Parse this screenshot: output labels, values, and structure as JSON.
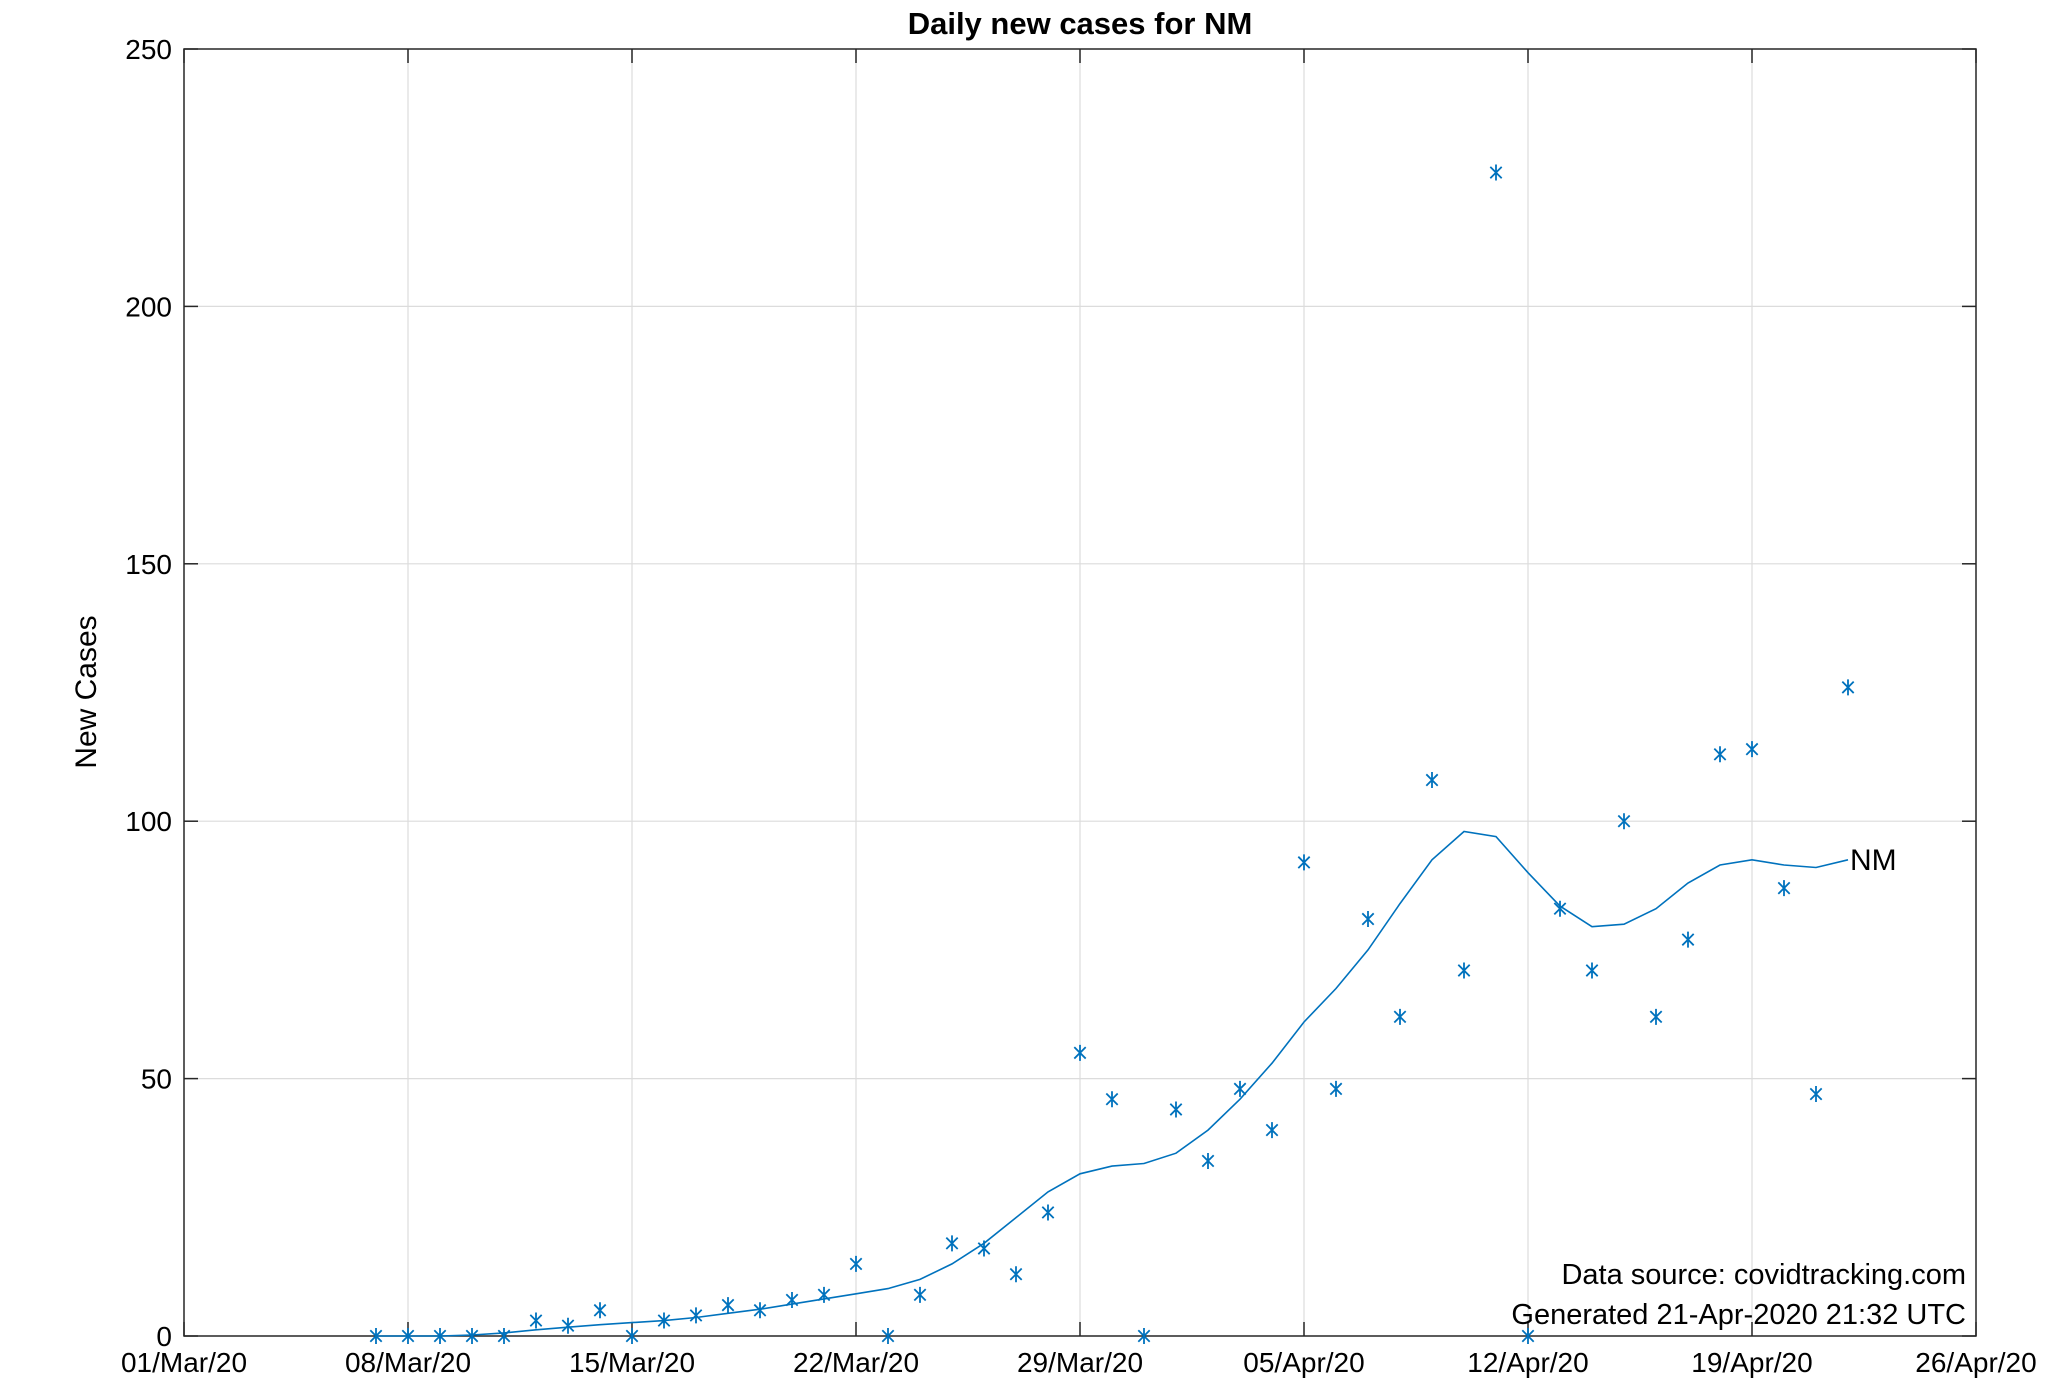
{
  "chart_data": {
    "type": "line",
    "title": "Daily new cases for NM",
    "xlabel": "",
    "ylabel": "New Cases",
    "x_ticks": [
      "01/Mar/20",
      "08/Mar/20",
      "15/Mar/20",
      "22/Mar/20",
      "29/Mar/20",
      "05/Apr/20",
      "12/Apr/20",
      "19/Apr/20",
      "26/Apr/20"
    ],
    "xlim": [
      "2020-03-01",
      "2020-04-26"
    ],
    "ylim": [
      0,
      250
    ],
    "y_ticks": [
      0,
      50,
      100,
      150,
      200,
      250
    ],
    "grid": true,
    "annotations": [
      "Data source: covidtracking.com",
      "Generated 21-Apr-2020 21:32 UTC"
    ],
    "series": [
      {
        "name": "NM",
        "style": "markers",
        "marker": "asterisk",
        "color": "#0072BD",
        "points": [
          [
            "2020-03-07",
            0
          ],
          [
            "2020-03-08",
            0
          ],
          [
            "2020-03-09",
            0
          ],
          [
            "2020-03-10",
            0
          ],
          [
            "2020-03-11",
            0
          ],
          [
            "2020-03-12",
            3
          ],
          [
            "2020-03-13",
            2
          ],
          [
            "2020-03-14",
            5
          ],
          [
            "2020-03-15",
            0
          ],
          [
            "2020-03-16",
            3
          ],
          [
            "2020-03-17",
            4
          ],
          [
            "2020-03-18",
            6
          ],
          [
            "2020-03-19",
            5
          ],
          [
            "2020-03-20",
            7
          ],
          [
            "2020-03-21",
            8
          ],
          [
            "2020-03-22",
            14
          ],
          [
            "2020-03-23",
            0
          ],
          [
            "2020-03-24",
            8
          ],
          [
            "2020-03-25",
            18
          ],
          [
            "2020-03-26",
            17
          ],
          [
            "2020-03-27",
            12
          ],
          [
            "2020-03-28",
            24
          ],
          [
            "2020-03-29",
            55
          ],
          [
            "2020-03-30",
            46
          ],
          [
            "2020-03-31",
            0
          ],
          [
            "2020-04-01",
            44
          ],
          [
            "2020-04-02",
            34
          ],
          [
            "2020-04-03",
            48
          ],
          [
            "2020-04-04",
            40
          ],
          [
            "2020-04-05",
            92
          ],
          [
            "2020-04-06",
            48
          ],
          [
            "2020-04-07",
            81
          ],
          [
            "2020-04-08",
            62
          ],
          [
            "2020-04-09",
            108
          ],
          [
            "2020-04-10",
            71
          ],
          [
            "2020-04-11",
            226
          ],
          [
            "2020-04-12",
            0
          ],
          [
            "2020-04-13",
            83
          ],
          [
            "2020-04-14",
            71
          ],
          [
            "2020-04-15",
            100
          ],
          [
            "2020-04-16",
            62
          ],
          [
            "2020-04-17",
            77
          ],
          [
            "2020-04-18",
            113
          ],
          [
            "2020-04-19",
            114
          ],
          [
            "2020-04-20",
            87
          ],
          [
            "2020-04-21",
            47
          ],
          [
            "2020-04-22",
            126
          ]
        ]
      },
      {
        "name": "NM",
        "style": "line",
        "color": "#0072BD",
        "points": [
          [
            "2020-03-07",
            0
          ],
          [
            "2020-03-08",
            0
          ],
          [
            "2020-03-09",
            0
          ],
          [
            "2020-03-10",
            0.2
          ],
          [
            "2020-03-11",
            0.6
          ],
          [
            "2020-03-12",
            1.2
          ],
          [
            "2020-03-13",
            1.7
          ],
          [
            "2020-03-14",
            2.2
          ],
          [
            "2020-03-15",
            2.6
          ],
          [
            "2020-03-16",
            3
          ],
          [
            "2020-03-17",
            3.6
          ],
          [
            "2020-03-18",
            4.4
          ],
          [
            "2020-03-19",
            5.2
          ],
          [
            "2020-03-20",
            6.2
          ],
          [
            "2020-03-21",
            7.2
          ],
          [
            "2020-03-22",
            8.2
          ],
          [
            "2020-03-23",
            9.2
          ],
          [
            "2020-03-24",
            11
          ],
          [
            "2020-03-25",
            14
          ],
          [
            "2020-03-26",
            18
          ],
          [
            "2020-03-27",
            23
          ],
          [
            "2020-03-28",
            28
          ],
          [
            "2020-03-29",
            31.5
          ],
          [
            "2020-03-30",
            33
          ],
          [
            "2020-03-31",
            33.5
          ],
          [
            "2020-04-01",
            35.5
          ],
          [
            "2020-04-02",
            40
          ],
          [
            "2020-04-03",
            46
          ],
          [
            "2020-04-04",
            53
          ],
          [
            "2020-04-05",
            61
          ],
          [
            "2020-04-06",
            67.5
          ],
          [
            "2020-04-07",
            75
          ],
          [
            "2020-04-08",
            84
          ],
          [
            "2020-04-09",
            92.5
          ],
          [
            "2020-04-10",
            98
          ],
          [
            "2020-04-11",
            97
          ],
          [
            "2020-04-12",
            90
          ],
          [
            "2020-04-13",
            83.5
          ],
          [
            "2020-04-14",
            79.5
          ],
          [
            "2020-04-15",
            80
          ],
          [
            "2020-04-16",
            83
          ],
          [
            "2020-04-17",
            88
          ],
          [
            "2020-04-18",
            91.5
          ],
          [
            "2020-04-19",
            92.5
          ],
          [
            "2020-04-20",
            91.5
          ],
          [
            "2020-04-21",
            91
          ],
          [
            "2020-04-22",
            92.5
          ]
        ]
      }
    ]
  }
}
